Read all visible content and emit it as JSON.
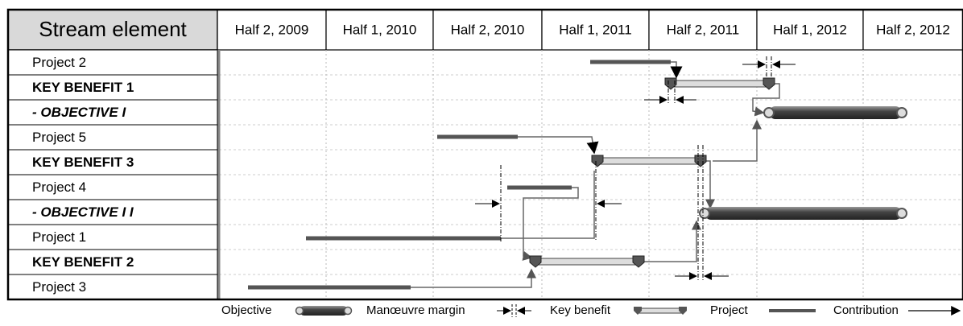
{
  "header": {
    "title": "Stream element",
    "periods": [
      "Half 2, 2009",
      "Half 1, 2010",
      "Half 2, 2010",
      "Half 1, 2011",
      "Half 2, 2011",
      "Half 1, 2012",
      "Half 2, 2012"
    ]
  },
  "rows": [
    "Project 2",
    "KEY BENEFIT 1",
    "- OBJECTIVE  I",
    "Project 5",
    "KEY BENEFIT 3",
    "Project 4",
    "- OBJECTIVE  I I",
    "Project 1",
    "KEY BENEFIT 2",
    "Project 3"
  ],
  "legend": {
    "objective": "Objective",
    "margin": "Manœuvre margin",
    "key_benefit": "Key benefit",
    "project": "Project",
    "contribution": "Contribution"
  }
}
